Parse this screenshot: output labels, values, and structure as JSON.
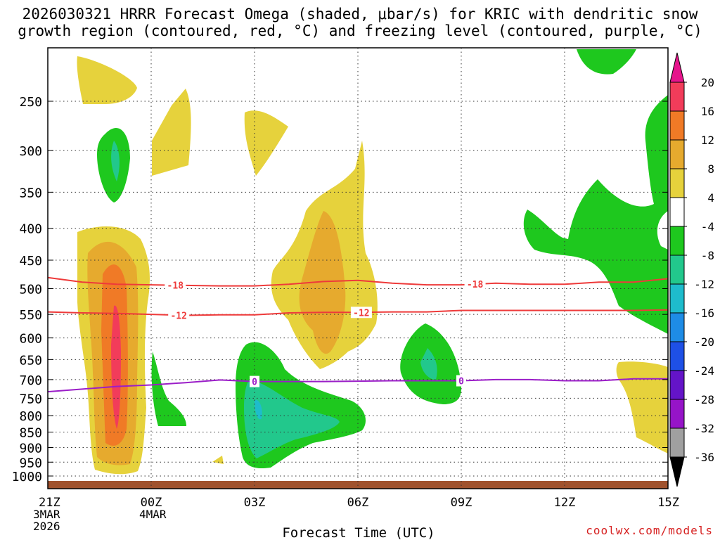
{
  "title_line1": "2026030321 HRRR Forecast Omega (shaded, μbar/s) for KRIC with dendritic snow",
  "title_line2": "growth region (contoured, red, °C) and freezing level (contoured, purple, °C)",
  "credit": "coolwx.com/models",
  "chart_data": {
    "type": "contour",
    "title": "2026030321 HRRR Forecast Omega (shaded, μbar/s) for KRIC with dendritic snow growth region (contoured, red, °C) and freezing level (contoured, purple, °C)",
    "xlabel": "Forecast Time (UTC)",
    "ylabel": "",
    "x_range_hours": [
      0,
      18
    ],
    "y_range_hpa": [
      1000,
      200
    ],
    "y_scale": "log",
    "x_ticks": [
      {
        "hour": 0,
        "label": "21Z",
        "sub1": "3MAR",
        "sub2": "2026"
      },
      {
        "hour": 3,
        "label": "00Z",
        "sub1": "4MAR",
        "sub2": ""
      },
      {
        "hour": 6,
        "label": "03Z",
        "sub1": "",
        "sub2": ""
      },
      {
        "hour": 9,
        "label": "06Z",
        "sub1": "",
        "sub2": ""
      },
      {
        "hour": 12,
        "label": "09Z",
        "sub1": "",
        "sub2": ""
      },
      {
        "hour": 15,
        "label": "12Z",
        "sub1": "",
        "sub2": ""
      },
      {
        "hour": 18,
        "label": "15Z",
        "sub1": "",
        "sub2": ""
      }
    ],
    "y_ticks": [
      250,
      300,
      350,
      400,
      450,
      500,
      550,
      600,
      650,
      700,
      750,
      800,
      850,
      900,
      950,
      1000
    ],
    "colorbar": {
      "labels": [
        "20",
        "16",
        "12",
        "8",
        "4",
        "-4",
        "-8",
        "-12",
        "-16",
        "-20",
        "-24",
        "-28",
        "-32",
        "-36"
      ],
      "colors": [
        "#f23c5a",
        "#f07a26",
        "#e6aa2e",
        "#e6d23c",
        "#ffffff",
        "#1ec81e",
        "#22c88c",
        "#1ebccc",
        "#1e8ce6",
        "#1e50e6",
        "#6414c8",
        "#9614c8",
        "#a0a0a0"
      ],
      "top_arrow": "#e6148c",
      "bottom_arrow": "#000000"
    },
    "contour_lines": [
      {
        "name": "dgz_top",
        "label": "-18",
        "color": "#ee3a3a",
        "points": [
          [
            0,
            480
          ],
          [
            1,
            488
          ],
          [
            2,
            492
          ],
          [
            3,
            493
          ],
          [
            4,
            494
          ],
          [
            5,
            495
          ],
          [
            6,
            495
          ],
          [
            7,
            492
          ],
          [
            8,
            487
          ],
          [
            9,
            485
          ],
          [
            10,
            490
          ],
          [
            11,
            493
          ],
          [
            12,
            493
          ],
          [
            13,
            490
          ],
          [
            14,
            492
          ],
          [
            15,
            492
          ],
          [
            16,
            488
          ],
          [
            17,
            488
          ],
          [
            18,
            482
          ]
        ],
        "label_hours": [
          3.7,
          12.4
        ]
      },
      {
        "name": "dgz_bottom",
        "label": "-12",
        "color": "#ee3a3a",
        "points": [
          [
            0,
            545
          ],
          [
            1,
            547
          ],
          [
            2,
            548
          ],
          [
            3,
            550
          ],
          [
            4,
            552
          ],
          [
            5,
            551
          ],
          [
            6,
            551
          ],
          [
            7,
            547
          ],
          [
            8,
            546
          ],
          [
            9,
            546
          ],
          [
            10,
            545
          ],
          [
            11,
            545
          ],
          [
            12,
            542
          ],
          [
            13,
            542
          ],
          [
            14,
            542
          ],
          [
            15,
            542
          ],
          [
            16,
            542
          ],
          [
            17,
            542
          ],
          [
            18,
            541
          ]
        ],
        "label_hours": [
          3.8,
          9.1
        ]
      },
      {
        "name": "freezing_level",
        "label": "0",
        "color": "#9b1ec8",
        "points": [
          [
            0,
            732
          ],
          [
            1,
            725
          ],
          [
            2,
            718
          ],
          [
            3,
            714
          ],
          [
            4,
            708
          ],
          [
            5,
            701
          ],
          [
            6,
            705
          ],
          [
            7,
            705
          ],
          [
            8,
            705
          ],
          [
            9,
            704
          ],
          [
            10,
            703
          ],
          [
            11,
            703
          ],
          [
            12,
            703
          ],
          [
            13,
            700
          ],
          [
            14,
            700
          ],
          [
            15,
            703
          ],
          [
            16,
            703
          ],
          [
            17,
            698
          ],
          [
            18,
            698
          ]
        ],
        "label_hours": [
          6.0,
          12.0
        ]
      }
    ]
  }
}
